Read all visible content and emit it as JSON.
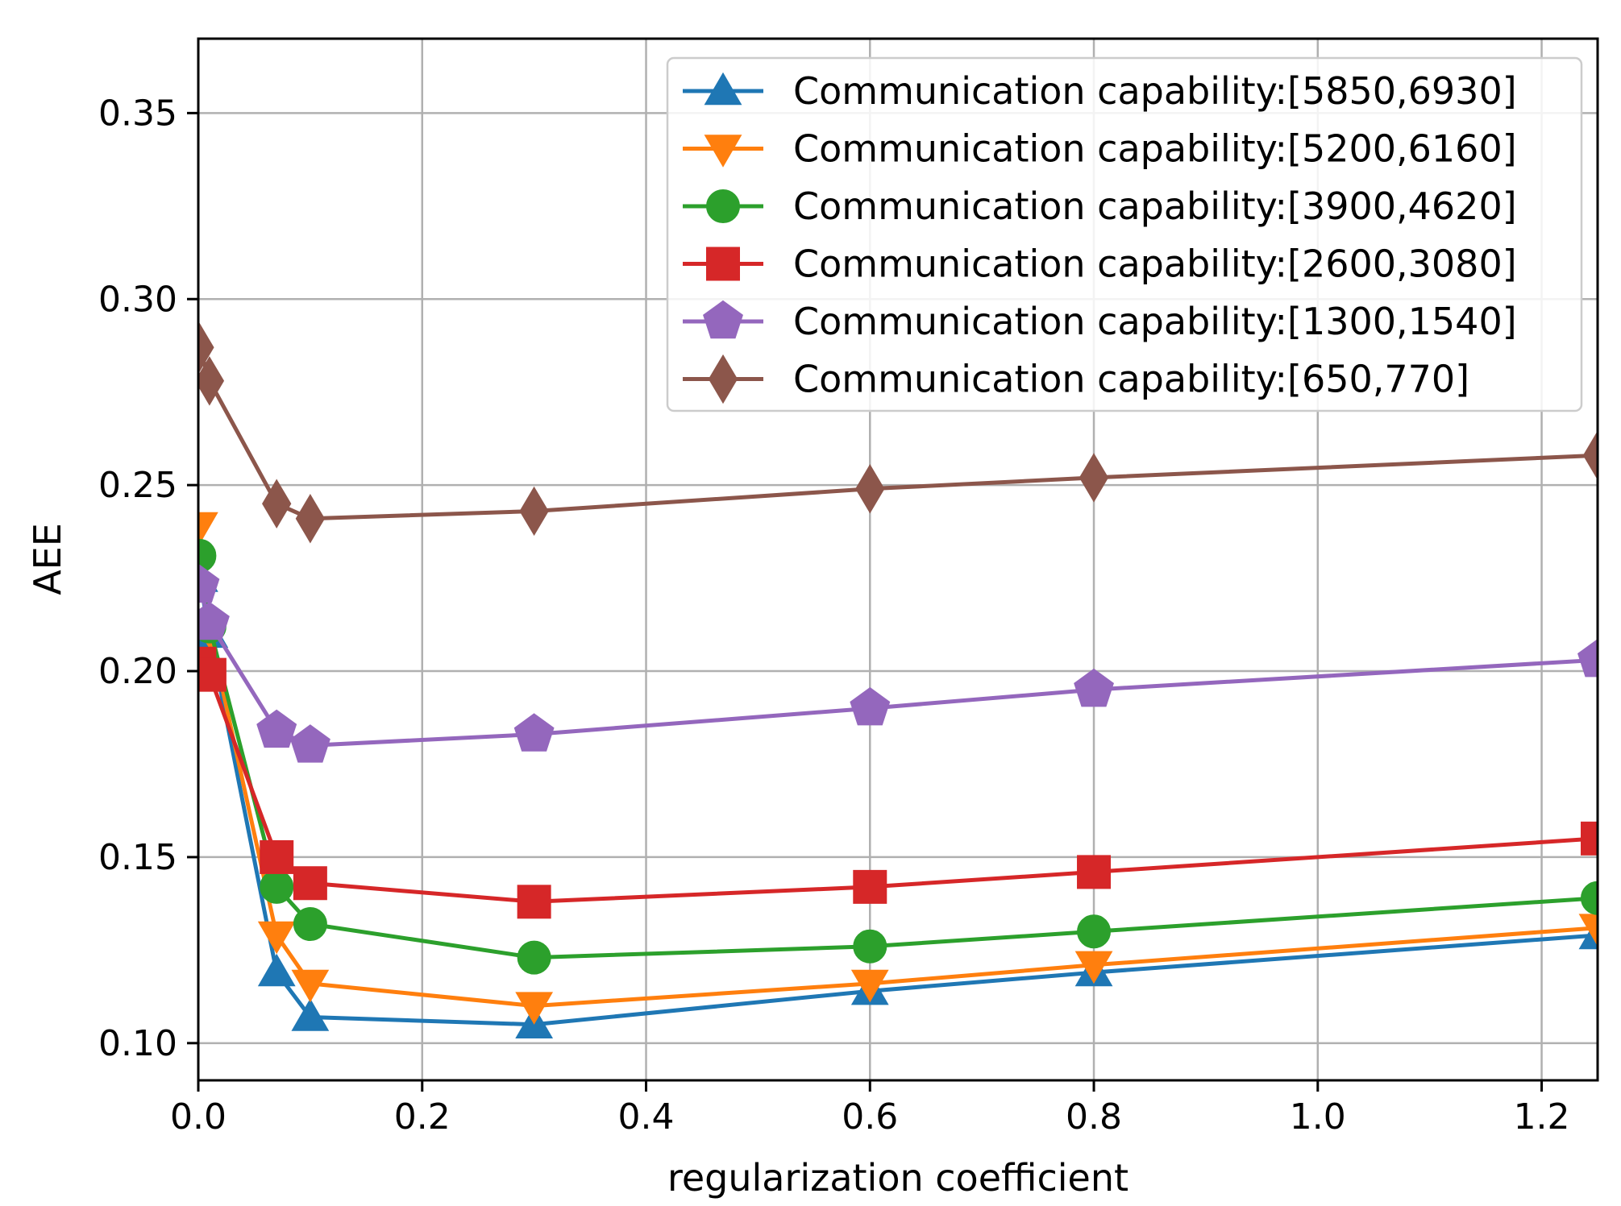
{
  "chart_data": {
    "type": "line",
    "xlabel": "regularization coefficient",
    "ylabel": "AEE",
    "xlim": [
      0.0,
      1.25
    ],
    "ylim": [
      0.09,
      0.37
    ],
    "xticks": [
      0.0,
      0.2,
      0.4,
      0.6,
      0.8,
      1.0,
      1.2
    ],
    "xtick_labels": [
      "0.0",
      "0.2",
      "0.4",
      "0.6",
      "0.8",
      "1.0",
      "1.2"
    ],
    "yticks": [
      0.1,
      0.15,
      0.2,
      0.25,
      0.3,
      0.35
    ],
    "ytick_labels": [
      "0.10",
      "0.15",
      "0.20",
      "0.25",
      "0.30",
      "0.35"
    ],
    "grid": true,
    "legend_position": "top-right",
    "x": [
      0.001,
      0.01,
      0.07,
      0.1,
      0.3,
      0.6,
      0.8,
      1.25
    ],
    "series": [
      {
        "name": "Communication capability:[5850,6930]",
        "color": "#1f77b4",
        "marker": "triangle-up",
        "values": [
          0.225,
          0.21,
          0.119,
          0.107,
          0.105,
          0.114,
          0.119,
          0.129
        ]
      },
      {
        "name": "Communication capability:[5200,6160]",
        "color": "#ff7f0e",
        "marker": "triangle-down",
        "values": [
          0.239,
          0.211,
          0.129,
          0.116,
          0.11,
          0.116,
          0.121,
          0.131
        ]
      },
      {
        "name": "Communication capability:[3900,4620]",
        "color": "#2ca02c",
        "marker": "circle",
        "values": [
          0.231,
          0.212,
          0.142,
          0.132,
          0.123,
          0.126,
          0.13,
          0.139
        ]
      },
      {
        "name": "Communication capability:[2600,3080]",
        "color": "#d62728",
        "marker": "square",
        "values": [
          0.202,
          0.199,
          0.15,
          0.143,
          0.138,
          0.142,
          0.146,
          0.155
        ]
      },
      {
        "name": "Communication capability:[1300,1540]",
        "color": "#9467bd",
        "marker": "pentagon",
        "values": [
          0.223,
          0.213,
          0.184,
          0.18,
          0.183,
          0.19,
          0.195,
          0.203
        ]
      },
      {
        "name": "Communication capability:[650,770]",
        "color": "#8c564b",
        "marker": "diamond",
        "values": [
          0.287,
          0.278,
          0.245,
          0.241,
          0.243,
          0.249,
          0.252,
          0.258
        ]
      }
    ]
  }
}
